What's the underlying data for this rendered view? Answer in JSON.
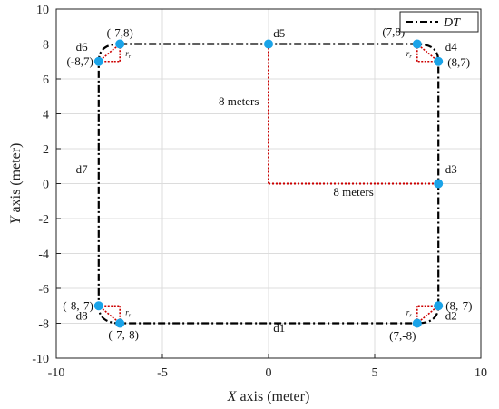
{
  "chart_data": {
    "type": "line",
    "xlabel": "X axis (meter)",
    "ylabel": "Y axis (meter)",
    "xlim": [
      -10,
      10
    ],
    "ylim": [
      -10,
      10
    ],
    "xticks": [
      -10,
      -5,
      0,
      5,
      10
    ],
    "yticks": [
      -10,
      -8,
      -6,
      -4,
      -2,
      0,
      2,
      4,
      6,
      8,
      10
    ],
    "grid": true,
    "legend_position": "top-right",
    "series": [
      {
        "name": "DT",
        "style": "dash-dot",
        "color": "#000000",
        "corner_radius": 1,
        "x": [
          -7,
          7,
          8,
          8,
          7,
          -7,
          -8,
          -8,
          -7
        ],
        "y": [
          8,
          8,
          7,
          -7,
          -8,
          -8,
          -7,
          7,
          8
        ]
      }
    ],
    "points": [
      {
        "x": -7,
        "y": 8,
        "label": "(-7,8)"
      },
      {
        "x": -8,
        "y": 7,
        "label": "(-8,7)"
      },
      {
        "x": 7,
        "y": 8,
        "label": "(7,8)"
      },
      {
        "x": 8,
        "y": 7,
        "label": "(8,7)"
      },
      {
        "x": 0,
        "y": 8,
        "label": ""
      },
      {
        "x": 8,
        "y": 0,
        "label": ""
      },
      {
        "x": 8,
        "y": -7,
        "label": "(8,-7)"
      },
      {
        "x": 7,
        "y": -8,
        "label": "(7,-8)"
      },
      {
        "x": -8,
        "y": -7,
        "label": "(-8,-7)"
      },
      {
        "x": -7,
        "y": -8,
        "label": "(-7,-8)"
      }
    ],
    "segment_labels": [
      {
        "text": "d1",
        "x": 0.5,
        "y": -8.5
      },
      {
        "text": "d2",
        "x": 8.6,
        "y": -7.8
      },
      {
        "text": "d3",
        "x": 8.6,
        "y": 0.6
      },
      {
        "text": "d4",
        "x": 8.6,
        "y": 7.6
      },
      {
        "text": "d5",
        "x": 0.5,
        "y": 8.4
      },
      {
        "text": "d6",
        "x": -8.8,
        "y": 7.6
      },
      {
        "text": "d7",
        "x": -8.8,
        "y": 0.6
      },
      {
        "text": "d8",
        "x": -8.8,
        "y": -7.8
      }
    ],
    "radius_lines": [
      {
        "text": "8 meters",
        "from": [
          0,
          0
        ],
        "to": [
          0,
          8
        ],
        "label_x": -1.4,
        "label_y": 4.5
      },
      {
        "text": "8 meters",
        "from": [
          0,
          0
        ],
        "to": [
          8,
          0
        ],
        "label_x": 4.0,
        "label_y": -0.7
      }
    ],
    "corner_marker_label": "r",
    "corner_marker_subscript": "r",
    "point_color": "#1aa3e8",
    "path_color": "#000000",
    "radius_line_color": "#cc0000"
  }
}
